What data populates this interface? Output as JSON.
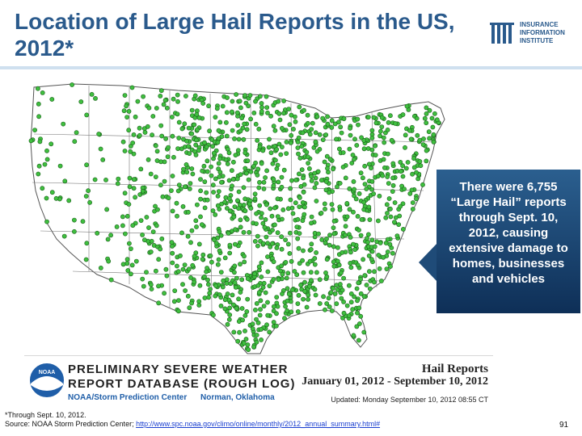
{
  "title": "Location of Large Hail Reports in the US, 2012*",
  "logo": {
    "lines": [
      "INSURANCE",
      "INFORMATION",
      "INSTITUTE"
    ],
    "color": "#2a5a8c"
  },
  "callout": {
    "text": "There were 6,755 “Large Hail” reports through Sept. 10, 2012, causing extensive damage to homes, businesses and vehicles"
  },
  "map": {
    "marker_color": "#3fbf3f",
    "marker_icon": "green-dot-marker"
  },
  "banner": {
    "line1": "PRELIMINARY SEVERE WEATHER",
    "line2": "REPORT DATABASE (ROUGH LOG)",
    "org": "NOAA/Storm Prediction Center",
    "city": "Norman, Oklahoma",
    "right_title": "Hail Reports",
    "date_range": "January 01, 2012 - September 10, 2012",
    "updated": "Updated:  Monday September 10, 2012 08:55 CT",
    "logo_text": "NOAA"
  },
  "footnote": {
    "note": "*Through Sept. 10, 2012.",
    "source_prefix": "Source: NOAA Storm Prediction Center; ",
    "source_link": "http://www.spc.noaa.gov/climo/online/monthly/2012_annual_summary.html#"
  },
  "page_number": "91"
}
